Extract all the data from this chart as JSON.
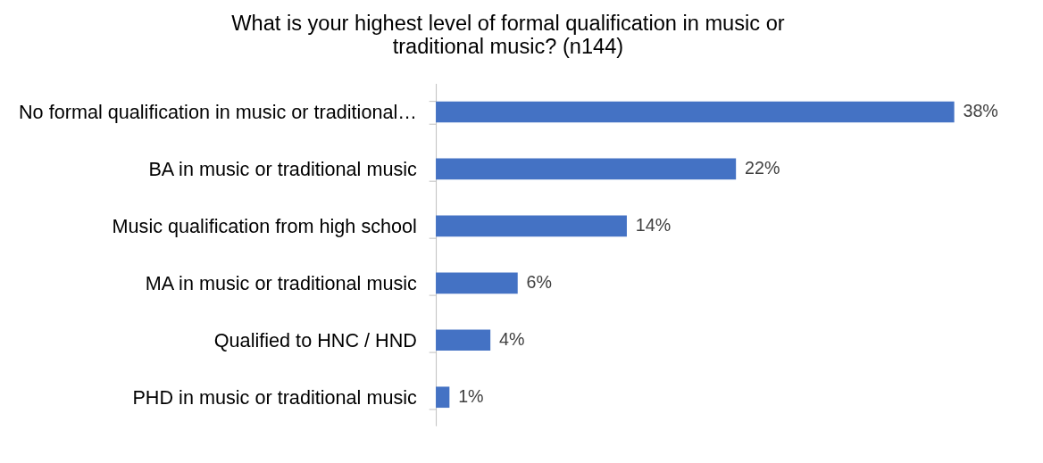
{
  "chart_data": {
    "type": "bar",
    "orientation": "horizontal",
    "title": "What is your highest level of formal qualification in music or traditional music? (n144)",
    "categories": [
      "No formal qualification in music or traditional…",
      "BA in music or traditional music",
      "Music qualification from high school",
      "MA in music or traditional music",
      "Qualified to HNC / HND",
      "PHD in music or traditional music"
    ],
    "values": [
      38,
      22,
      14,
      6,
      4,
      1
    ],
    "value_labels": [
      "38%",
      "22%",
      "14%",
      "6%",
      "4%",
      "1%"
    ],
    "color": "#4472c4",
    "grid": false,
    "tick_labels": "y"
  }
}
